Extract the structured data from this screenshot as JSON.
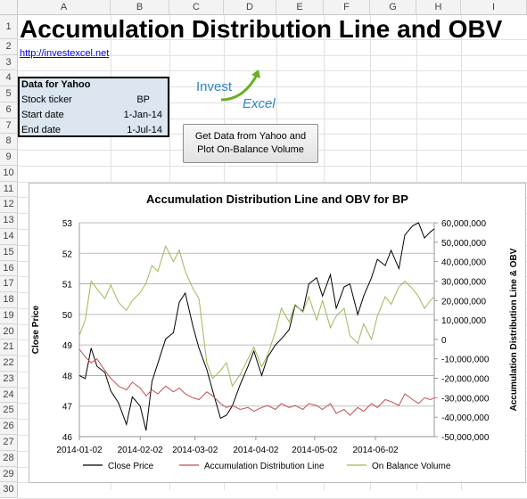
{
  "columns": [
    "A",
    "B",
    "C",
    "D",
    "E",
    "F",
    "G",
    "H",
    "I"
  ],
  "rows": [
    "1",
    "2",
    "3",
    "4",
    "5",
    "6",
    "7",
    "8",
    "9",
    "10",
    "11",
    "12",
    "13",
    "14",
    "15",
    "16",
    "17",
    "18",
    "19",
    "20",
    "21",
    "22",
    "23",
    "24",
    "25",
    "26",
    "27",
    "28",
    "29",
    "30"
  ],
  "sheet_title": "Accumulation Distribution Line and OBV",
  "link": "http://investexcel.net",
  "data_box": {
    "header": "Data for Yahoo",
    "rows": [
      {
        "label": "Stock ticker",
        "value": "BP"
      },
      {
        "label": "Start date",
        "value": "1-Jan-14"
      },
      {
        "label": "End date",
        "value": "1-Jul-14"
      }
    ]
  },
  "logo": {
    "word1": "Invest",
    "word2": "Excel",
    "accent": "#6ab023",
    "text_color": "#2e86c1"
  },
  "button": {
    "line1": "Get Data from Yahoo and",
    "line2": "Plot On-Balance Volume"
  },
  "chart_data": {
    "type": "line",
    "title": "Accumulation Distribution Line and OBV for BP",
    "ylabel": "Close Price",
    "y2label": "Accumulation Distribution Line & OBV",
    "ylim": [
      46,
      53
    ],
    "y2lim": [
      -50000000,
      60000000
    ],
    "yticks": [
      "46",
      "47",
      "48",
      "49",
      "50",
      "51",
      "52",
      "53"
    ],
    "y2ticks": [
      "-50,000,000",
      "-40,000,000",
      "-30,000,000",
      "-20,000,000",
      "-10,000,000",
      "0",
      "10,000,000",
      "20,000,000",
      "30,000,000",
      "40,000,000",
      "50,000,000",
      "60,000,000"
    ],
    "xticks": [
      "2014-01-02",
      "2014-02-02",
      "2014-03-02",
      "2014-04-02",
      "2014-05-02",
      "2014-06-02"
    ],
    "xtick_days": [
      0,
      31,
      59,
      90,
      120,
      151
    ],
    "xlim_days": [
      0,
      181
    ],
    "grid": true,
    "legend_position": "bottom",
    "series": [
      {
        "name": "Close Price",
        "axis": "left",
        "color": "#000000",
        "x": [
          0,
          3,
          6,
          9,
          13,
          16,
          20,
          24,
          27,
          31,
          34,
          37,
          40,
          44,
          48,
          51,
          54,
          58,
          61,
          65,
          68,
          72,
          75,
          78,
          82,
          86,
          89,
          93,
          96,
          100,
          103,
          107,
          110,
          114,
          117,
          121,
          124,
          128,
          131,
          135,
          138,
          142,
          145,
          149,
          152,
          156,
          159,
          163,
          166,
          170,
          173,
          176,
          179,
          181
        ],
        "values": [
          48.0,
          47.9,
          48.9,
          48.3,
          48.1,
          47.5,
          47.1,
          46.4,
          47.3,
          47.0,
          46.2,
          47.8,
          48.4,
          49.2,
          49.4,
          50.4,
          50.7,
          49.6,
          48.9,
          48.2,
          47.5,
          46.6,
          46.7,
          47.0,
          47.7,
          48.3,
          48.8,
          48.0,
          48.6,
          49.0,
          49.2,
          49.5,
          50.3,
          50.1,
          51.0,
          51.2,
          50.6,
          51.3,
          50.2,
          50.9,
          51.0,
          50.0,
          50.6,
          51.2,
          51.8,
          51.6,
          52.1,
          51.5,
          52.6,
          52.9,
          53.0,
          52.5,
          52.7,
          52.8
        ]
      },
      {
        "name": "Accumulation Distribution Line",
        "axis": "right",
        "color": "#c0504d",
        "x": [
          0,
          3,
          6,
          9,
          13,
          16,
          20,
          24,
          27,
          31,
          34,
          37,
          40,
          44,
          48,
          51,
          54,
          58,
          61,
          65,
          68,
          72,
          75,
          78,
          82,
          86,
          89,
          93,
          96,
          100,
          103,
          107,
          110,
          114,
          117,
          121,
          124,
          128,
          131,
          135,
          138,
          142,
          145,
          149,
          152,
          156,
          159,
          163,
          166,
          170,
          173,
          176,
          179,
          181
        ],
        "values": [
          -5000000,
          -9000000,
          -12000000,
          -10000000,
          -16000000,
          -20000000,
          -24000000,
          -26000000,
          -22000000,
          -25000000,
          -29000000,
          -26000000,
          -28000000,
          -24000000,
          -27000000,
          -25000000,
          -28000000,
          -30000000,
          -31000000,
          -27000000,
          -29000000,
          -33000000,
          -35000000,
          -34000000,
          -36000000,
          -35000000,
          -37000000,
          -35000000,
          -34000000,
          -36000000,
          -33000000,
          -35000000,
          -34000000,
          -36000000,
          -33000000,
          -34000000,
          -36000000,
          -33000000,
          -38000000,
          -36000000,
          -39000000,
          -35000000,
          -37000000,
          -33000000,
          -35000000,
          -31000000,
          -32000000,
          -34000000,
          -28000000,
          -31000000,
          -33000000,
          -30000000,
          -31000000,
          -30000000
        ]
      },
      {
        "name": "On Balance Volume",
        "axis": "right",
        "color": "#9bbb59",
        "x": [
          0,
          3,
          6,
          9,
          13,
          16,
          20,
          24,
          27,
          31,
          34,
          37,
          40,
          44,
          48,
          51,
          54,
          58,
          61,
          65,
          68,
          72,
          75,
          78,
          82,
          86,
          89,
          93,
          96,
          100,
          103,
          107,
          110,
          114,
          117,
          121,
          124,
          128,
          131,
          135,
          138,
          142,
          145,
          149,
          152,
          156,
          159,
          163,
          166,
          170,
          173,
          176,
          179,
          181
        ],
        "values": [
          2000000,
          10000000,
          30000000,
          26000000,
          21000000,
          28000000,
          19000000,
          15000000,
          20000000,
          24000000,
          29000000,
          38000000,
          35000000,
          48000000,
          40000000,
          46000000,
          35000000,
          26000000,
          21000000,
          -12000000,
          -20000000,
          -16000000,
          -12000000,
          -24000000,
          -18000000,
          -10000000,
          -4000000,
          -14000000,
          -8000000,
          4000000,
          16000000,
          9000000,
          18000000,
          14000000,
          22000000,
          10000000,
          20000000,
          6000000,
          12000000,
          16000000,
          2000000,
          -2000000,
          8000000,
          0,
          12000000,
          22000000,
          18000000,
          27000000,
          30000000,
          26000000,
          22000000,
          16000000,
          20000000,
          22000000
        ]
      }
    ]
  }
}
